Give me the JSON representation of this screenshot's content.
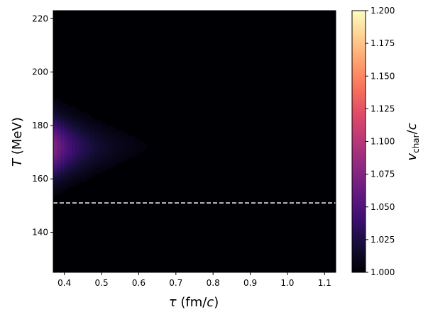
{
  "chart_data": {
    "type": "heatmap",
    "title": "",
    "x": {
      "range": [
        0.37,
        1.13
      ],
      "ticks": [
        0.4,
        0.5,
        0.6,
        0.7,
        0.8,
        0.9,
        1.0,
        1.1
      ],
      "tick_labels": [
        "0.4",
        "0.5",
        "0.6",
        "0.7",
        "0.8",
        "0.9",
        "1.0",
        "1.1"
      ],
      "label": {
        "symbol": "τ",
        "text": " (fm/",
        "italic_unit": "c",
        "close": ")"
      }
    },
    "y": {
      "range": [
        125,
        223
      ],
      "ticks": [
        140,
        160,
        180,
        200,
        220
      ],
      "tick_labels": [
        "140",
        "160",
        "180",
        "200",
        "220"
      ],
      "label": {
        "symbol": "T",
        "text": " (MeV)"
      }
    },
    "colorbar": {
      "range": [
        1.0,
        1.2
      ],
      "colormap": "magma",
      "ticks": [
        1.0,
        1.025,
        1.05,
        1.075,
        1.1,
        1.125,
        1.15,
        1.175,
        1.2
      ],
      "tick_labels": [
        "1.000",
        "1.025",
        "1.050",
        "1.075",
        "1.100",
        "1.125",
        "1.150",
        "1.175",
        "1.200"
      ],
      "label": {
        "main": "v",
        "sub": "char",
        "slash": "/",
        "tail": "c"
      }
    },
    "reference_line": {
      "y": 151,
      "style": "dashed",
      "color": "#ffffff"
    },
    "field": {
      "description_units": "v_char/c as function of tau (fm/c) and T (MeV)",
      "peak_tau": 0.37,
      "peak_T": 172,
      "peak_value": 1.075,
      "baseline": 1.0
    },
    "grid": false
  }
}
